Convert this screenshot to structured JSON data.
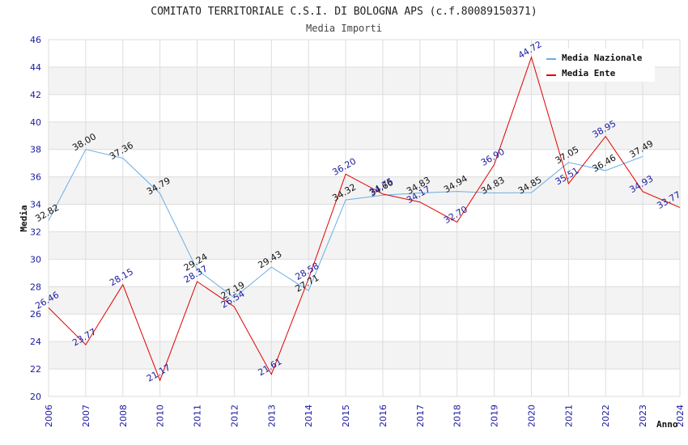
{
  "chart_data": {
    "type": "line",
    "title": "COMITATO TERRITORIALE C.S.I. DI BOLOGNA APS (c.f.80089150371)",
    "subtitle": "Media Importi",
    "xlabel": "Anno",
    "ylabel": "Media",
    "ylim": [
      20,
      46
    ],
    "ytick_step": 2,
    "yticks": [
      "20",
      "22",
      "24",
      "26",
      "28",
      "30",
      "32",
      "34",
      "36",
      "38",
      "40",
      "42",
      "44",
      "46"
    ],
    "categories": [
      "2006",
      "2007",
      "2008",
      "2010",
      "2011",
      "2012",
      "2013",
      "2014",
      "2015",
      "2016",
      "2017",
      "2018",
      "2019",
      "2020",
      "2021",
      "2022",
      "2023",
      "2024"
    ],
    "legend_position": "top-right",
    "series": [
      {
        "name": "Media Nazionale",
        "color": "#6aaee6",
        "values": [
          32.82,
          38.0,
          37.36,
          34.79,
          29.24,
          27.19,
          29.43,
          27.71,
          34.32,
          34.66,
          34.83,
          34.94,
          34.83,
          34.85,
          37.05,
          36.46,
          37.49,
          null
        ],
        "labels": [
          "32.82",
          "38.00",
          "37.36",
          "34.79",
          "29.24",
          "27.19",
          "29.43",
          "27.71",
          "34.32",
          "34.66",
          "34.83",
          "34.94",
          "34.83",
          "34.85",
          "37.05",
          "36.46",
          "37.49",
          ""
        ]
      },
      {
        "name": "Media Ente",
        "color": "#e00000",
        "values": [
          26.46,
          23.77,
          28.15,
          21.17,
          28.37,
          26.54,
          21.61,
          28.58,
          36.2,
          34.75,
          34.17,
          32.7,
          36.9,
          44.72,
          35.51,
          38.95,
          34.93,
          33.77
        ],
        "labels": [
          "26.46",
          "23.77",
          "28.15",
          "21.17",
          "28.37",
          "26.54",
          "21.61",
          "28.58",
          "36.20",
          "34.75",
          "34.17",
          "32.70",
          "36.90",
          "44.72",
          "35.51",
          "38.95",
          "34.93",
          "33.77"
        ]
      }
    ]
  }
}
